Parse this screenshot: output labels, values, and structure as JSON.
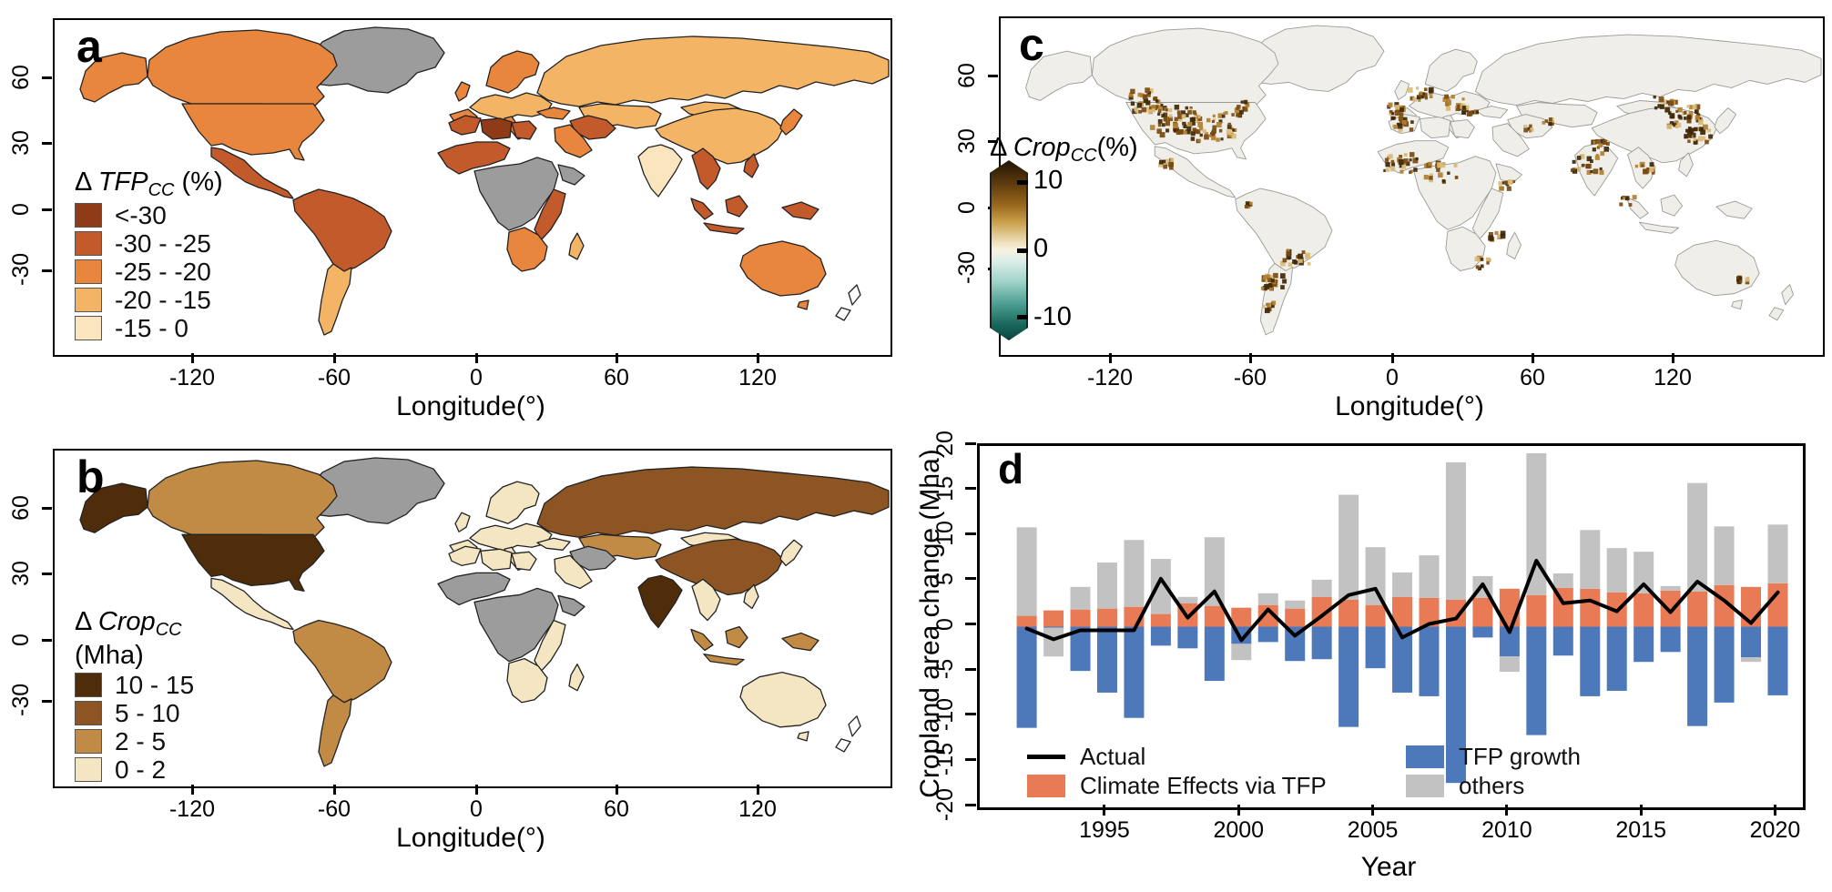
{
  "panel_a": {
    "label": "a",
    "legend": {
      "title_delta": "Δ ",
      "title_name": "TFP",
      "title_sub": "CC",
      "title_unit": " (%)",
      "items": [
        {
          "label": "<-30",
          "color": "#8F3B17"
        },
        {
          "label": "-30 - -25",
          "color": "#C25A2B"
        },
        {
          "label": "-25 - -20",
          "color": "#E8863D"
        },
        {
          "label": "-20 - -15",
          "color": "#F3B565"
        },
        {
          "label": "-15 - 0",
          "color": "#FAE5BF"
        }
      ]
    },
    "class_colors": {
      "c1": "#8F3B17",
      "c2": "#C25A2B",
      "c3": "#E8863D",
      "c4": "#F3B565",
      "c5": "#FAE5BF",
      "nodata": "#9C9C9C",
      "white": "#FFFFFF"
    },
    "region_fills": {
      "greenland": "nodata",
      "alaska": "c3",
      "canada": "c3",
      "usa": "c3",
      "mexico": "c2",
      "samerica_n": "c2",
      "samerica_s": "c4",
      "europe": "c4",
      "iberia": "c3",
      "italy": "c3",
      "uk": "c3",
      "scandinavia": "c3",
      "russia": "c4",
      "kazakh": "c4",
      "mongolia": "c4",
      "china": "c4",
      "india": "c5",
      "turkey": "c3",
      "iran": "c2",
      "arabia": "c3",
      "maghreb": "c2",
      "libya": "c1",
      "egypt": "c2",
      "sahel": "c2",
      "cafrica": "nodata",
      "horn": "nodata",
      "eafrica": "c2",
      "safrica": "c3",
      "madagascar": "c4",
      "seasia": "c2",
      "sumatra": "c2",
      "borneo": "c2",
      "java": "c2",
      "newguinea": "c2",
      "philippines": "c2",
      "australia": "c3",
      "tasmania": "c3",
      "japan": "c3",
      "nz": "white"
    },
    "axes": {
      "xlabel": "Longitude(°)",
      "x_ticks": [
        "-120",
        "-60",
        "0",
        "60",
        "120"
      ],
      "y_ticks": [
        "60",
        "30",
        "0",
        "-30"
      ]
    }
  },
  "panel_b": {
    "label": "b",
    "legend": {
      "title_delta": "Δ ",
      "title_name": "Crop",
      "title_sub": "CC",
      "title_unit": "(Mha)",
      "items": [
        {
          "label": "10 - 15",
          "color": "#4F2D0B"
        },
        {
          "label": "5 - 10",
          "color": "#8D5524"
        },
        {
          "label": "2 - 5",
          "color": "#C18A45"
        },
        {
          "label": "0 - 2",
          "color": "#F4E6C2"
        }
      ]
    },
    "class_colors": {
      "b1": "#4F2D0B",
      "b2": "#8D5524",
      "b3": "#C18A45",
      "b4": "#F4E6C2",
      "nodata": "#9C9C9C",
      "white": "#FFFFFF"
    },
    "region_fills": {
      "greenland": "nodata",
      "alaska": "b1",
      "canada": "b3",
      "usa": "b1",
      "mexico": "b4",
      "samerica_n": "b3",
      "samerica_s": "b3",
      "europe": "b4",
      "iberia": "b4",
      "italy": "b4",
      "uk": "b4",
      "scandinavia": "b4",
      "russia": "b2",
      "kazakh": "b3",
      "mongolia": "b4",
      "china": "b2",
      "india": "b1",
      "turkey": "b4",
      "iran": "nodata",
      "arabia": "b4",
      "maghreb": "b4",
      "libya": "b4",
      "egypt": "b4",
      "sahel": "nodata",
      "cafrica": "nodata",
      "horn": "nodata",
      "eafrica": "b4",
      "safrica": "b4",
      "madagascar": "b4",
      "seasia": "b4",
      "sumatra": "b3",
      "borneo": "b3",
      "java": "b3",
      "newguinea": "b3",
      "philippines": "b4",
      "australia": "b4",
      "tasmania": "b4",
      "japan": "b4",
      "nz": "white"
    },
    "axes": {
      "xlabel": "Longitude(°)",
      "x_ticks": [
        "-120",
        "-60",
        "0",
        "60",
        "120"
      ],
      "y_ticks": [
        "60",
        "30",
        "0",
        "-30"
      ]
    }
  },
  "panel_c": {
    "label": "c",
    "colorbar": {
      "title_delta": "Δ ",
      "title_name": "Crop",
      "title_sub": "CC",
      "title_unit": "(%)",
      "ticks": [
        "10",
        "0",
        "-10"
      ],
      "top_color": "#241703",
      "mid_color": "#F7F2E2",
      "bottom_color": "#0C4A42"
    },
    "land_color": "#F0EEE9",
    "border_color": "#9A9A98",
    "hotspots": [
      [
        195,
        112,
        60,
        26
      ],
      [
        165,
        90,
        34,
        22
      ],
      [
        238,
        120,
        42,
        24
      ],
      [
        262,
        100,
        16,
        14
      ],
      [
        182,
        158,
        12,
        10
      ],
      [
        277,
        205,
        6,
        6
      ],
      [
        305,
        288,
        26,
        13
      ],
      [
        330,
        262,
        22,
        15
      ],
      [
        300,
        315,
        8,
        8
      ],
      [
        440,
        100,
        14,
        10
      ],
      [
        470,
        82,
        16,
        14
      ],
      [
        505,
        92,
        14,
        12
      ],
      [
        523,
        100,
        12,
        10
      ],
      [
        448,
        116,
        16,
        12
      ],
      [
        448,
        160,
        26,
        20
      ],
      [
        492,
        168,
        22,
        18
      ],
      [
        565,
        182,
        10,
        8
      ],
      [
        540,
        268,
        12,
        10
      ],
      [
        555,
        238,
        8,
        8
      ],
      [
        655,
        158,
        22,
        18
      ],
      [
        670,
        140,
        12,
        10
      ],
      [
        762,
        108,
        36,
        20
      ],
      [
        778,
        128,
        26,
        16
      ],
      [
        742,
        92,
        14,
        12
      ],
      [
        720,
        165,
        14,
        10
      ],
      [
        700,
        200,
        8,
        8
      ],
      [
        830,
        285,
        10,
        6
      ],
      [
        590,
        120,
        6,
        6
      ],
      [
        610,
        112,
        6,
        6
      ]
    ],
    "axes": {
      "xlabel": "Longitude(°)",
      "x_ticks": [
        "-120",
        "-60",
        "0",
        "60",
        "120"
      ],
      "y_ticks": [
        "60",
        "30",
        "0",
        "-30"
      ]
    }
  },
  "panel_d": {
    "label": "d",
    "ylabel": "Cropland area change (Mha)",
    "xlabel": "Year",
    "y_ticks": [
      "20",
      "15",
      "10",
      "5",
      "0",
      "-5",
      "-10",
      "-15",
      "-20"
    ],
    "x_ticks": [
      "1995",
      "2000",
      "2005",
      "2010",
      "2015",
      "2020"
    ],
    "legend": [
      {
        "label": "Actual",
        "color": "#000000",
        "type": "line"
      },
      {
        "label": "Climate Effects via TFP",
        "color": "#E87A55",
        "type": "box"
      },
      {
        "label": "TFP growth",
        "color": "#4D79BB",
        "type": "box"
      },
      {
        "label": "others",
        "color": "#C2C2C2",
        "type": "box"
      }
    ]
  },
  "chart_data": [
    {
      "type": "heatmap",
      "panel": "a",
      "title": "Δ TFP_CC (%)",
      "subtype": "choropleth-map",
      "bins": [
        "<-30",
        "-30 - -25",
        "-25 - -20",
        "-20 - -15",
        "-15 - 0"
      ],
      "bin_colors": [
        "#8F3B17",
        "#C25A2B",
        "#E8863D",
        "#F3B565",
        "#FAE5BF"
      ],
      "no_data_color": "#9C9C9C",
      "xlabel": "Longitude(°)",
      "x_ticks": [
        -120,
        -60,
        0,
        60,
        120
      ],
      "y_ticks": [
        60,
        30,
        0,
        -30
      ]
    },
    {
      "type": "heatmap",
      "panel": "b",
      "title": "Δ Crop_CC (Mha)",
      "subtype": "choropleth-map",
      "bins": [
        "10 - 15",
        "5 - 10",
        "2 - 5",
        "0 - 2"
      ],
      "bin_colors": [
        "#4F2D0B",
        "#8D5524",
        "#C18A45",
        "#F4E6C2"
      ],
      "no_data_color": "#9C9C9C",
      "xlabel": "Longitude(°)",
      "x_ticks": [
        -120,
        -60,
        0,
        60,
        120
      ],
      "y_ticks": [
        60,
        30,
        0,
        -30
      ]
    },
    {
      "type": "heatmap",
      "panel": "c",
      "title": "Δ Crop_CC (%)",
      "subtype": "gridded-map",
      "colorbar_range": [
        -10,
        10
      ],
      "colorbar_ticks": [
        10,
        0,
        -10
      ],
      "colorbar_colors": {
        "high": "#241703",
        "zero": "#F7F2E2",
        "low": "#0C4A42"
      },
      "xlabel": "Longitude(°)",
      "x_ticks": [
        -120,
        -60,
        0,
        60,
        120
      ],
      "y_ticks": [
        60,
        30,
        0,
        -30
      ]
    },
    {
      "type": "bar",
      "panel": "d",
      "x": [
        1992,
        1993,
        1994,
        1995,
        1996,
        1997,
        1998,
        1999,
        2000,
        2001,
        2002,
        2003,
        2004,
        2005,
        2006,
        2007,
        2008,
        2009,
        2010,
        2011,
        2012,
        2013,
        2014,
        2015,
        2016,
        2017,
        2018,
        2019,
        2020
      ],
      "series": [
        {
          "name": "Climate Effects via TFP",
          "color": "#E87A55",
          "values": [
            1.2,
            1.8,
            1.9,
            2.0,
            2.2,
            1.4,
            2.6,
            2.3,
            2.1,
            2.4,
            2.0,
            3.3,
            3.0,
            2.4,
            3.3,
            3.2,
            3.0,
            3.2,
            4.2,
            3.5,
            4.3,
            4.2,
            3.8,
            3.7,
            4.0,
            3.9,
            4.6,
            4.4,
            4.8
          ]
        },
        {
          "name": "TFP growth",
          "color": "#4D79BB",
          "values": [
            -11.2,
            -0.1,
            -4.9,
            -7.3,
            -10.1,
            -2.1,
            -2.4,
            -6.0,
            -1.9,
            -1.7,
            -3.8,
            -3.6,
            -11.1,
            -4.6,
            -7.3,
            -7.7,
            -17.3,
            -1.2,
            -3.3,
            -12.0,
            -3.2,
            -7.7,
            -7.1,
            -3.9,
            -2.8,
            -11.0,
            -8.4,
            -3.4,
            -7.6
          ]
        },
        {
          "name": "others",
          "color": "#C2C2C2",
          "values": [
            9.8,
            -3.2,
            2.5,
            5.1,
            7.4,
            6.1,
            0.7,
            7.6,
            -1.8,
            1.3,
            0.9,
            1.9,
            11.6,
            6.4,
            2.7,
            4.7,
            15.2,
            2.4,
            -1.7,
            15.7,
            1.6,
            6.5,
            4.9,
            4.6,
            0.5,
            12.0,
            6.5,
            -0.5,
            6.5
          ]
        }
      ],
      "line": {
        "name": "Actual",
        "color": "#000000",
        "values": [
          -0.2,
          -1.4,
          -0.4,
          -0.4,
          -0.4,
          5.3,
          1.0,
          3.9,
          -1.5,
          1.9,
          -1.0,
          1.2,
          3.5,
          4.2,
          -1.2,
          0.3,
          0.9,
          4.7,
          -0.6,
          7.3,
          2.6,
          2.9,
          1.7,
          4.7,
          1.6,
          5.0,
          2.9,
          0.4,
          3.8
        ]
      },
      "title": "",
      "xlabel": "Year",
      "ylabel": "Cropland area change (Mha)",
      "ylim": [
        -20,
        20
      ],
      "x_tick_labels": [
        1995,
        2000,
        2005,
        2010,
        2015,
        2020
      ]
    }
  ]
}
